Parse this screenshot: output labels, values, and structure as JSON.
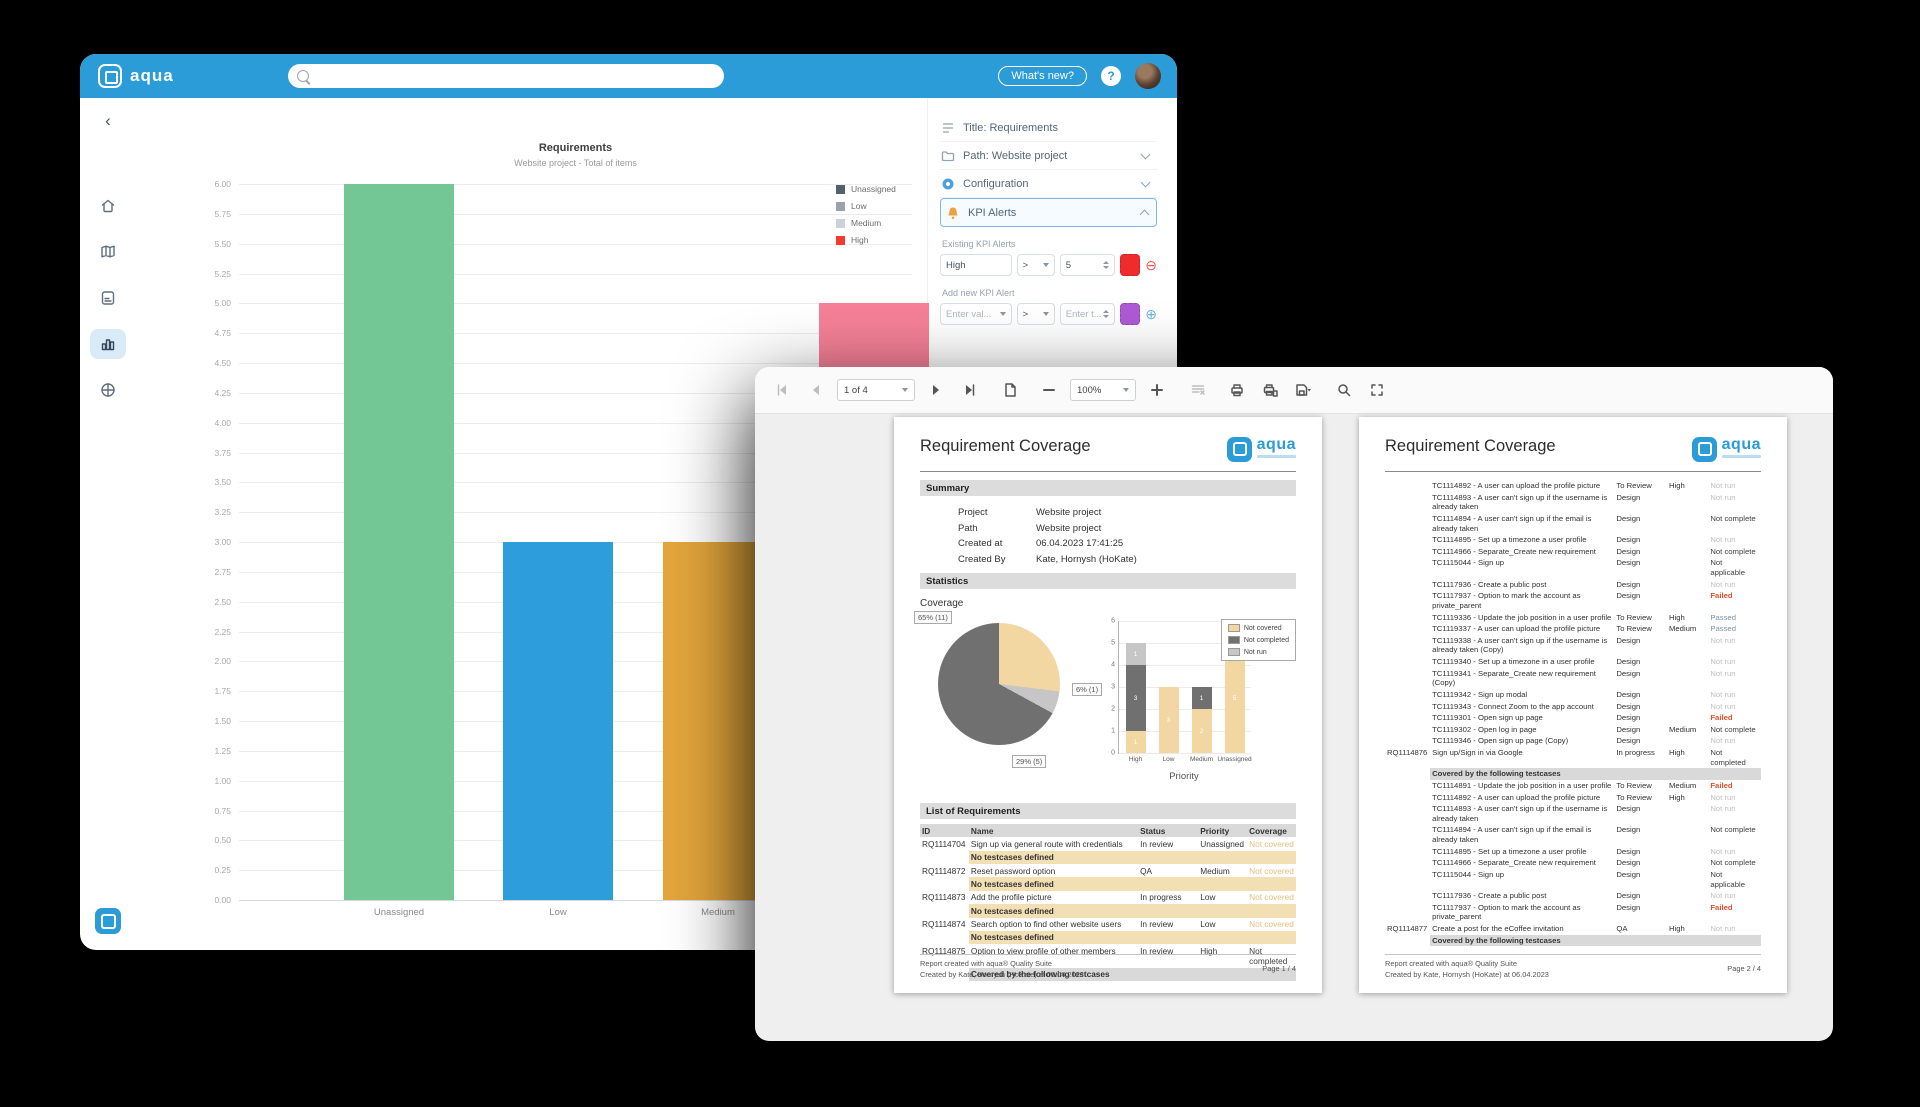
{
  "back_window": {
    "header": {
      "logo_text": "aqua",
      "search_placeholder": "",
      "whats_new_label": "What's new?",
      "help_label": "?"
    },
    "panel": {
      "rows": [
        {
          "icon": "text-icon",
          "label": "Title: Requirements"
        },
        {
          "icon": "folder-icon",
          "label": "Path: Website project",
          "chevron": "down"
        },
        {
          "icon": "config-icon",
          "label": "Configuration",
          "chevron": "down"
        },
        {
          "icon": "bell-icon",
          "label": "KPI Alerts",
          "chevron": "up",
          "active": true
        }
      ],
      "existing_label": "Existing KPI Alerts",
      "existing": {
        "name": "High",
        "operator": ">",
        "value": "5",
        "color": "#F02B2B"
      },
      "add_label": "Add new KPI Alert",
      "add": {
        "name_placeholder": "Enter val...",
        "operator": ">",
        "value_placeholder": "Enter t...",
        "color": "#AE5AD6"
      }
    }
  },
  "front_window": {
    "toolbar": {
      "page_indicator": "1 of 4",
      "zoom_level": "100%"
    },
    "report_title": "Requirement Coverage",
    "logo_text": "aqua",
    "page1": {
      "sections": {
        "summary": "Summary",
        "statistics": "Statistics",
        "list": "List of Requirements",
        "coverage_label": "Coverage"
      },
      "summary_rows": [
        {
          "label": "Project",
          "value": "Website project"
        },
        {
          "label": "Path",
          "value": "Website project"
        },
        {
          "label": "Created at",
          "value": "06.04.2023 17:41:25"
        },
        {
          "label": "Created By",
          "value": "Kate, Hornysh (HoKate)"
        }
      ],
      "table_headers": [
        "ID",
        "Name",
        "Status",
        "Priority",
        "Coverage"
      ],
      "rows": [
        {
          "type": "req",
          "id": "RQ1114704",
          "name": "Sign up via general route with credentials",
          "status": "In review",
          "priority": "Unassigned",
          "coverage": "Not covered",
          "coverage_class": "not-covered"
        },
        {
          "type": "note",
          "text": "No testcases defined"
        },
        {
          "type": "req",
          "id": "RQ1114872",
          "name": "Reset password option",
          "status": "QA",
          "priority": "Medium",
          "coverage": "Not covered",
          "coverage_class": "not-covered"
        },
        {
          "type": "note",
          "text": "No testcases defined"
        },
        {
          "type": "req",
          "id": "RQ1114873",
          "name": "Add the profile picture",
          "status": "In progress",
          "priority": "Low",
          "coverage": "Not covered",
          "coverage_class": "not-covered"
        },
        {
          "type": "note",
          "text": "No testcases defined"
        },
        {
          "type": "req",
          "id": "RQ1114874",
          "name": "Search option to find other website users",
          "status": "In review",
          "priority": "Low",
          "coverage": "Not covered",
          "coverage_class": "not-covered"
        },
        {
          "type": "note",
          "text": "No testcases defined"
        },
        {
          "type": "req",
          "id": "RQ1114875",
          "name": "Option to view profile of other members",
          "status": "In review",
          "priority": "High",
          "coverage": "Not completed",
          "coverage_class": "normal"
        },
        {
          "type": "section",
          "text": "Covered by the following testcases"
        }
      ],
      "footer": {
        "line1": "Report created with aqua® Quality Suite",
        "line2": "Created by Kate, Hornysh (HoKate) at 06.04.2023",
        "page": "Page 1 / 4"
      }
    },
    "page2": {
      "rows": [
        {
          "type": "tc",
          "name": "TC1114892 - A user can upload the profile picture",
          "status": "To Review",
          "priority": "High",
          "coverage": "Not run",
          "coverage_class": "not-run"
        },
        {
          "type": "tc",
          "name": "TC1114893 - A user can't sign up if the username is already taken",
          "status": "Design",
          "priority": "",
          "coverage": "Not run",
          "coverage_class": "not-run"
        },
        {
          "type": "tc",
          "name": "TC1114894 - A user can't sign up if the email is already taken",
          "status": "Design",
          "priority": "",
          "coverage": "Not complete",
          "coverage_class": "normal"
        },
        {
          "type": "tc",
          "name": "TC1114895 - Set up a timezone a user profile",
          "status": "Design",
          "priority": "",
          "coverage": "Not run",
          "coverage_class": "not-run"
        },
        {
          "type": "tc",
          "name": "TC1114966 - Separate_Create new requirement",
          "status": "Design",
          "priority": "",
          "coverage": "Not complete",
          "coverage_class": "normal"
        },
        {
          "type": "tc",
          "name": "TC1115044 - Sign up",
          "status": "Design",
          "priority": "",
          "coverage": "Not applicable",
          "coverage_class": "normal"
        },
        {
          "type": "tc",
          "name": "TC1117936 - Create a public post",
          "status": "Design",
          "priority": "",
          "coverage": "Not run",
          "coverage_class": "not-run"
        },
        {
          "type": "tc",
          "name": "TC1117937 - Option to mark the account as private_parent",
          "status": "Design",
          "priority": "",
          "coverage": "Failed",
          "coverage_class": "failed"
        },
        {
          "type": "tc",
          "name": "TC1119336 - Update the job position in a user profile",
          "status": "To Review",
          "priority": "High",
          "coverage": "Passed",
          "coverage_class": "passed"
        },
        {
          "type": "tc",
          "name": "TC1119337 - A user can upload the profile picture",
          "status": "To Review",
          "priority": "Medium",
          "coverage": "Passed",
          "coverage_class": "passed"
        },
        {
          "type": "tc",
          "name": "TC1119338 - A user can't sign up if the username is already taken  (Copy)",
          "status": "Design",
          "priority": "",
          "coverage": "Not run",
          "coverage_class": "not-run"
        },
        {
          "type": "tc",
          "name": "TC1119340 - Set up a timezone in a user profile",
          "status": "Design",
          "priority": "",
          "coverage": "Not run",
          "coverage_class": "not-run"
        },
        {
          "type": "tc",
          "name": "TC1119341 - Separate_Create new requirement (Copy)",
          "status": "Design",
          "priority": "",
          "coverage": "Not run",
          "coverage_class": "not-run"
        },
        {
          "type": "tc",
          "name": "TC1119342 - Sign up modal",
          "status": "Design",
          "priority": "",
          "coverage": "Not run",
          "coverage_class": "not-run"
        },
        {
          "type": "tc",
          "name": "TC1119343 - Connect Zoom to the app account",
          "status": "Design",
          "priority": "",
          "coverage": "Not run",
          "coverage_class": "not-run"
        },
        {
          "type": "tc",
          "name": "TC1119301 - Open sign up page",
          "status": "Design",
          "priority": "",
          "coverage": "Failed",
          "coverage_class": "failed"
        },
        {
          "type": "tc",
          "name": "TC1119302 - Open log in page",
          "status": "Design",
          "priority": "Medium",
          "coverage": "Not complete",
          "coverage_class": "normal"
        },
        {
          "type": "tc",
          "name": "TC1119346 - Open sign up page (Copy)",
          "status": "Design",
          "priority": "",
          "coverage": "Not run",
          "coverage_class": "not-run"
        },
        {
          "type": "req",
          "id": "RQ1114876",
          "name": "Sign up/Sign in via Google",
          "status": "In progress",
          "priority": "High",
          "coverage": "Not completed",
          "coverage_class": "normal"
        },
        {
          "type": "section",
          "text": "Covered by the following testcases"
        },
        {
          "type": "tc",
          "name": "TC1114891 - Update the job position in a user profile",
          "status": "To Review",
          "priority": "Medium",
          "coverage": "Failed",
          "coverage_class": "failed"
        },
        {
          "type": "tc",
          "name": "TC1114892 - A user can upload the profile picture",
          "status": "To Review",
          "priority": "High",
          "coverage": "Not run",
          "coverage_class": "not-run"
        },
        {
          "type": "tc",
          "name": "TC1114893 - A user can't sign up if the username is already taken",
          "status": "Design",
          "priority": "",
          "coverage": "Not run",
          "coverage_class": "not-run"
        },
        {
          "type": "tc",
          "name": "TC1114894 - A user can't sign up if the email is already taken",
          "status": "Design",
          "priority": "",
          "coverage": "Not complete",
          "coverage_class": "normal"
        },
        {
          "type": "tc",
          "name": "TC1114895 - Set up a timezone a user profile",
          "status": "Design",
          "priority": "",
          "coverage": "Not run",
          "coverage_class": "not-run"
        },
        {
          "type": "tc",
          "name": "TC1114966 - Separate_Create new requirement",
          "status": "Design",
          "priority": "",
          "coverage": "Not complete",
          "coverage_class": "normal"
        },
        {
          "type": "tc",
          "name": "TC1115044 - Sign up",
          "status": "Design",
          "priority": "",
          "coverage": "Not applicable",
          "coverage_class": "normal"
        },
        {
          "type": "tc",
          "name": "TC1117936 - Create a public post",
          "status": "Design",
          "priority": "",
          "coverage": "Not run",
          "coverage_class": "not-run"
        },
        {
          "type": "tc",
          "name": "TC1117937 - Option to mark the account as private_parent",
          "status": "Design",
          "priority": "",
          "coverage": "Failed",
          "coverage_class": "failed"
        },
        {
          "type": "req",
          "id": "RQ1114877",
          "name": "Create a post for the eCoffee invitation",
          "status": "QA",
          "priority": "High",
          "coverage": "Not run",
          "coverage_class": "not-run"
        },
        {
          "type": "section",
          "text": "Covered by the following testcases"
        }
      ],
      "footer": {
        "line1": "Report created with aqua® Quality Suite",
        "line2": "Created by Kate, Hornysh (HoKate) at 06.04.2023",
        "page": "Page 2 / 4"
      }
    }
  },
  "chart_data": [
    {
      "id": "requirements-bar",
      "type": "bar",
      "title": "Requirements",
      "subtitle": "Website project - Total of items",
      "categories": [
        "Unassigned",
        "Low",
        "Medium",
        "High"
      ],
      "values": [
        6,
        3,
        3,
        5
      ],
      "bar_colors": [
        "#72C794",
        "#2D9EDB",
        "#E4A63C",
        "#F58097"
      ],
      "legend": [
        {
          "label": "Unassigned",
          "color": "#55606E"
        },
        {
          "label": "Low",
          "color": "#9AA3AD"
        },
        {
          "label": "Medium",
          "color": "#CDD2D8"
        },
        {
          "label": "High",
          "color": "#F23B2F"
        }
      ],
      "xlabel": "",
      "ylabel": "",
      "ylim": [
        0,
        6
      ],
      "ytick_step": 0.25,
      "grid": true,
      "legend_position": "right-top"
    },
    {
      "id": "coverage-pie",
      "type": "pie",
      "start_angle_deg": -137,
      "slices": [
        {
          "label": "Not covered",
          "pct": 65,
          "count": 11,
          "display": "65% (11)",
          "color": "#F2D7A2"
        },
        {
          "label": "Not run",
          "pct": 6,
          "count": 1,
          "display": "6% (1)",
          "color": "#C6C6C6"
        },
        {
          "label": "Not completed",
          "pct": 29,
          "count": 5,
          "display": "29% (5)",
          "color": "#707070"
        }
      ]
    },
    {
      "id": "priority-stacked-bar",
      "type": "bar",
      "stacked": true,
      "categories": [
        "High",
        "Low",
        "Medium",
        "Unassigned"
      ],
      "series": [
        {
          "name": "Not covered",
          "color": "#F2D7A2",
          "values": [
            1,
            3,
            2,
            5
          ]
        },
        {
          "name": "Not completed",
          "color": "#707070",
          "values": [
            3,
            0,
            1,
            1
          ]
        },
        {
          "name": "Not run",
          "color": "#C6C6C6",
          "values": [
            1,
            0,
            0,
            0
          ]
        }
      ],
      "xlabel": "Priority",
      "ylabel": "",
      "ylim": [
        0,
        6
      ],
      "ytick_step": 1,
      "grid": true,
      "legend_position": "right-top"
    }
  ]
}
